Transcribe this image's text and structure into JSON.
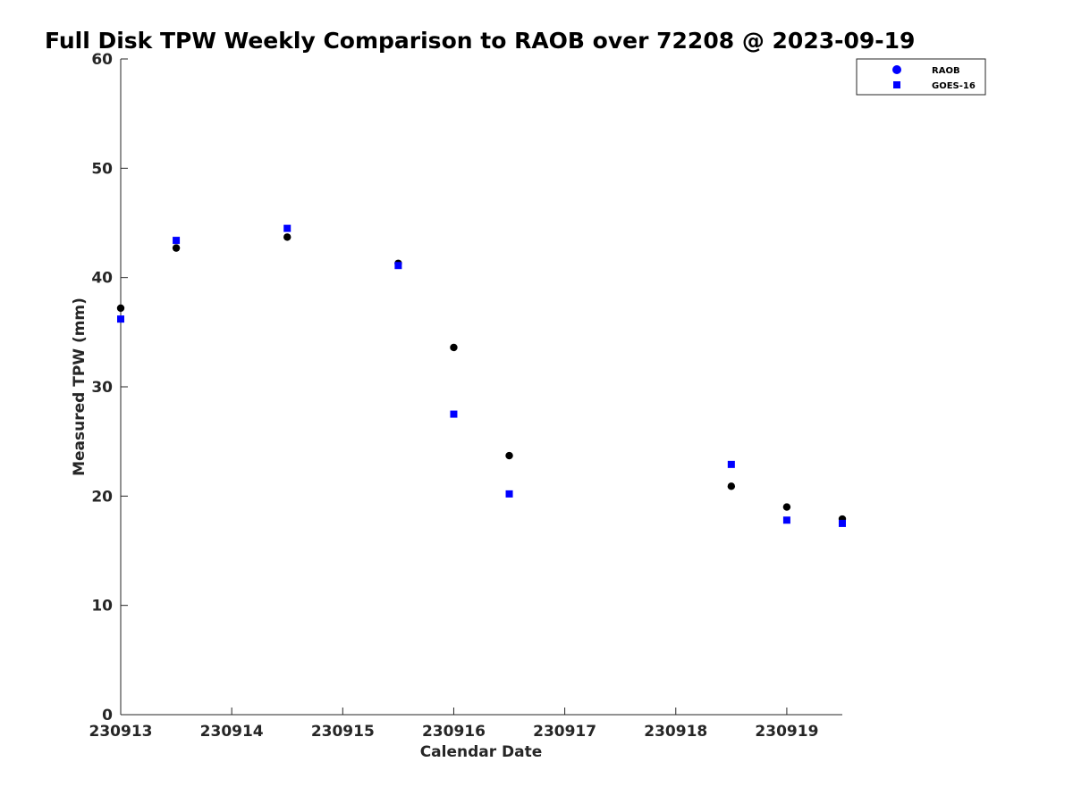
{
  "chart_data": {
    "type": "scatter",
    "title": "Full Disk TPW Weekly Comparison to RAOB over 72208 @ 2023-09-19",
    "xlabel": "Calendar Date",
    "ylabel": "Measured TPW (mm)",
    "x_ticks": [
      "230913",
      "230914",
      "230915",
      "230916",
      "230917",
      "230918",
      "230919"
    ],
    "y_ticks": [
      "0",
      "10",
      "20",
      "30",
      "40",
      "50",
      "60"
    ],
    "xlim": [
      "2023-09-13 00:00",
      "2023-09-19 12:00"
    ],
    "ylim": [
      0,
      60
    ],
    "grid": false,
    "legend_position": "top-right",
    "series": [
      {
        "name": "RAOB",
        "marker": "circle",
        "color": "#000000",
        "legend_color": "#0000ff",
        "points": [
          {
            "x": "2023-09-13 00:00",
            "y": 37.2
          },
          {
            "x": "2023-09-13 12:00",
            "y": 42.7
          },
          {
            "x": "2023-09-14 12:00",
            "y": 43.7
          },
          {
            "x": "2023-09-15 12:00",
            "y": 41.3
          },
          {
            "x": "2023-09-16 00:00",
            "y": 33.6
          },
          {
            "x": "2023-09-16 12:00",
            "y": 23.7
          },
          {
            "x": "2023-09-18 12:00",
            "y": 20.9
          },
          {
            "x": "2023-09-19 00:00",
            "y": 19.0
          },
          {
            "x": "2023-09-19 12:00",
            "y": 17.9
          }
        ]
      },
      {
        "name": "GOES-16",
        "marker": "square",
        "color": "#0000ff",
        "legend_color": "#0000ff",
        "points": [
          {
            "x": "2023-09-13 00:00",
            "y": 36.2
          },
          {
            "x": "2023-09-13 12:00",
            "y": 43.4
          },
          {
            "x": "2023-09-14 12:00",
            "y": 44.5
          },
          {
            "x": "2023-09-15 12:00",
            "y": 41.1
          },
          {
            "x": "2023-09-16 00:00",
            "y": 27.5
          },
          {
            "x": "2023-09-16 12:00",
            "y": 20.2
          },
          {
            "x": "2023-09-18 12:00",
            "y": 22.9
          },
          {
            "x": "2023-09-19 00:00",
            "y": 17.8
          },
          {
            "x": "2023-09-19 12:00",
            "y": 17.5
          }
        ]
      }
    ]
  }
}
